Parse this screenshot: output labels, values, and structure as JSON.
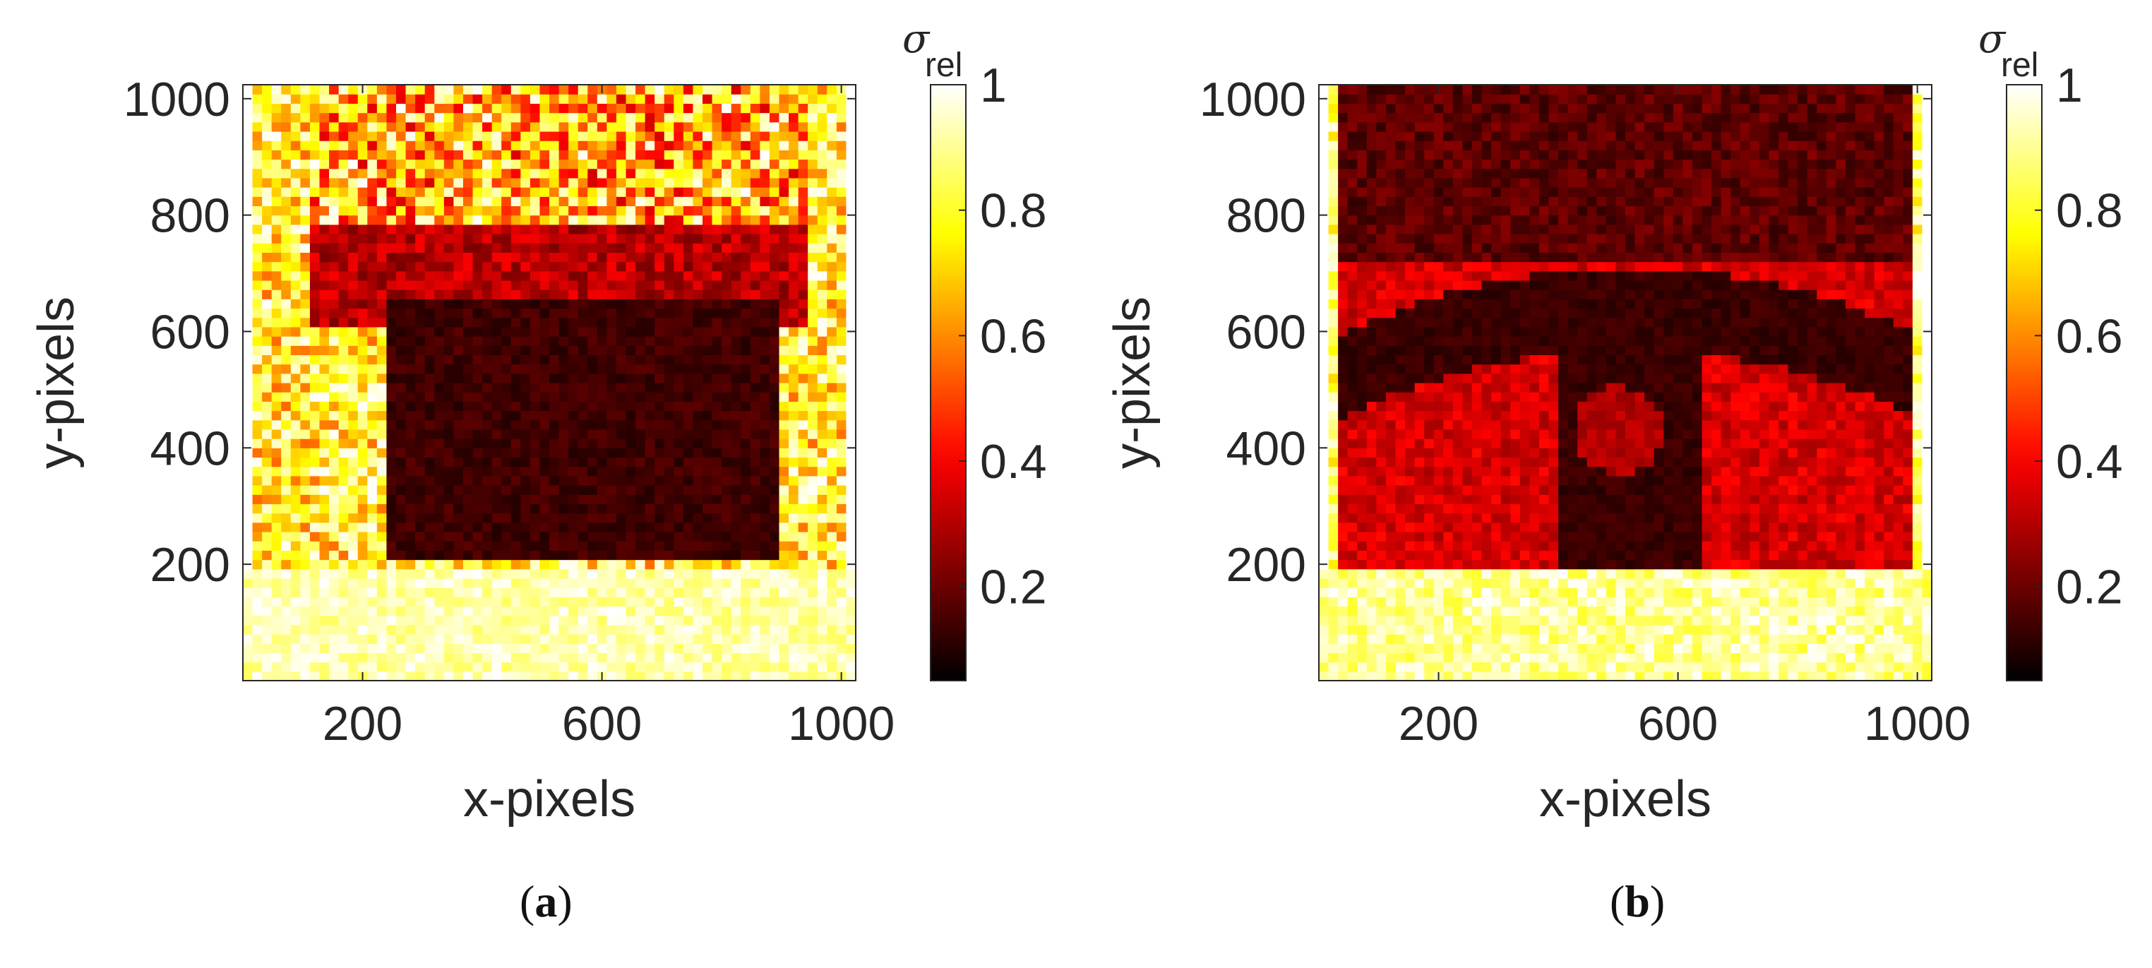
{
  "chart_data": [
    {
      "type": "heatmap",
      "panel_label": "a",
      "xlabel": "x-pixels",
      "ylabel": "y-pixels",
      "xlim": [
        0,
        1024
      ],
      "ylim": [
        0,
        1024
      ],
      "xticks": [
        200,
        600,
        1000
      ],
      "yticks": [
        200,
        400,
        600,
        800,
        1000
      ],
      "colorbar": {
        "label_symbol": "σ",
        "label_subscript": "rel",
        "range": [
          0.05,
          1
        ],
        "ticks": [
          0.2,
          0.4,
          0.6,
          0.8,
          1
        ],
        "colormap": "hot"
      },
      "regions": [
        {
          "name": "dark block",
          "x": [
            230,
            900
          ],
          "y": [
            200,
            660
          ],
          "value": 0.12
        },
        {
          "name": "upper band",
          "x": [
            110,
            950
          ],
          "y": [
            620,
            780
          ],
          "value": 0.3
        },
        {
          "name": "top noisy area",
          "x": [
            120,
            940
          ],
          "y": [
            780,
            1024
          ],
          "value": 0.75
        },
        {
          "name": "outside illuminated area",
          "x": [
            0,
            1024
          ],
          "y": [
            0,
            200
          ],
          "value": 1.0
        }
      ]
    },
    {
      "type": "heatmap",
      "panel_label": "b",
      "xlabel": "x-pixels",
      "ylabel": "y-pixels",
      "xlim": [
        0,
        1024
      ],
      "ylim": [
        0,
        1024
      ],
      "xticks": [
        200,
        600,
        1000
      ],
      "yticks": [
        200,
        400,
        600,
        800,
        1000
      ],
      "colorbar": {
        "label_symbol": "σ",
        "label_subscript": "rel",
        "range": [
          0.05,
          1
        ],
        "ticks": [
          0.2,
          0.4,
          0.6,
          0.8,
          1
        ],
        "colormap": "hot"
      },
      "regions": [
        {
          "name": "illuminated area",
          "x": [
            30,
            1000
          ],
          "y": [
            200,
            720
          ],
          "value": 0.35
        },
        {
          "name": "dark arc",
          "x": [
            100,
            960
          ],
          "y": [
            200,
            720
          ],
          "value": 0.12
        },
        {
          "name": "disk",
          "center": [
            500,
            430
          ],
          "radius": 75,
          "value": 0.3
        },
        {
          "name": "top area",
          "x": [
            100,
            960
          ],
          "y": [
            720,
            1024
          ],
          "value": 0.18
        },
        {
          "name": "outside illuminated area",
          "x": [
            0,
            1024
          ],
          "y": [
            0,
            200
          ],
          "value": 1.0
        }
      ]
    }
  ],
  "captions": [
    {
      "open": "(",
      "label": "a",
      "close": ")"
    },
    {
      "open": "(",
      "label": "b",
      "close": ")"
    }
  ]
}
